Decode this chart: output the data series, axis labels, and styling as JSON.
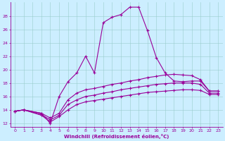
{
  "xlabel": "Windchill (Refroidissement éolien,°C)",
  "bg_color": "#cceeff",
  "line_color": "#990099",
  "grid_color": "#99cccc",
  "xlim": [
    -0.5,
    23.5
  ],
  "ylim": [
    11.5,
    30.0
  ],
  "yticks": [
    12,
    14,
    16,
    18,
    20,
    22,
    24,
    26,
    28
  ],
  "xticks": [
    0,
    1,
    2,
    3,
    4,
    5,
    6,
    7,
    8,
    9,
    10,
    11,
    12,
    13,
    14,
    15,
    16,
    17,
    18,
    19,
    20,
    21,
    22,
    23
  ],
  "curves": [
    {
      "x": [
        0,
        1,
        3,
        4,
        5,
        6,
        7,
        8,
        9,
        10,
        11,
        12,
        13,
        14,
        15,
        16,
        17,
        18,
        19,
        20,
        21,
        22,
        23
      ],
      "y": [
        13.8,
        14.0,
        13.5,
        12.0,
        16.0,
        18.2,
        19.5,
        22.0,
        19.5,
        27.0,
        27.8,
        28.2,
        29.3,
        29.3,
        25.8,
        21.8,
        19.5,
        18.3,
        18.2,
        18.3,
        18.3,
        16.8,
        16.8
      ]
    },
    {
      "x": [
        0,
        1,
        3,
        4,
        5,
        6,
        7,
        8,
        9,
        10,
        11,
        12,
        13,
        14,
        15,
        16,
        17,
        18,
        19,
        20,
        21,
        22,
        23
      ],
      "y": [
        13.8,
        14.0,
        13.5,
        12.8,
        13.5,
        15.5,
        16.5,
        17.0,
        17.2,
        17.5,
        17.8,
        18.0,
        18.3,
        18.5,
        18.8,
        19.0,
        19.2,
        19.3,
        19.2,
        19.1,
        18.5,
        16.8,
        16.8
      ]
    },
    {
      "x": [
        0,
        1,
        3,
        4,
        5,
        6,
        7,
        8,
        9,
        10,
        11,
        12,
        13,
        14,
        15,
        16,
        17,
        18,
        19,
        20,
        21,
        22,
        23
      ],
      "y": [
        13.8,
        14.0,
        13.3,
        12.5,
        13.2,
        14.8,
        15.5,
        16.0,
        16.2,
        16.5,
        16.7,
        17.0,
        17.2,
        17.4,
        17.6,
        17.8,
        17.9,
        18.0,
        18.0,
        18.0,
        17.8,
        16.5,
        16.5
      ]
    },
    {
      "x": [
        0,
        1,
        3,
        4,
        5,
        6,
        7,
        8,
        9,
        10,
        11,
        12,
        13,
        14,
        15,
        16,
        17,
        18,
        19,
        20,
        21,
        22,
        23
      ],
      "y": [
        13.8,
        14.0,
        13.2,
        12.2,
        13.0,
        14.0,
        14.8,
        15.2,
        15.4,
        15.6,
        15.8,
        16.0,
        16.2,
        16.4,
        16.6,
        16.7,
        16.8,
        16.9,
        17.0,
        17.0,
        16.9,
        16.3,
        16.3
      ]
    }
  ]
}
